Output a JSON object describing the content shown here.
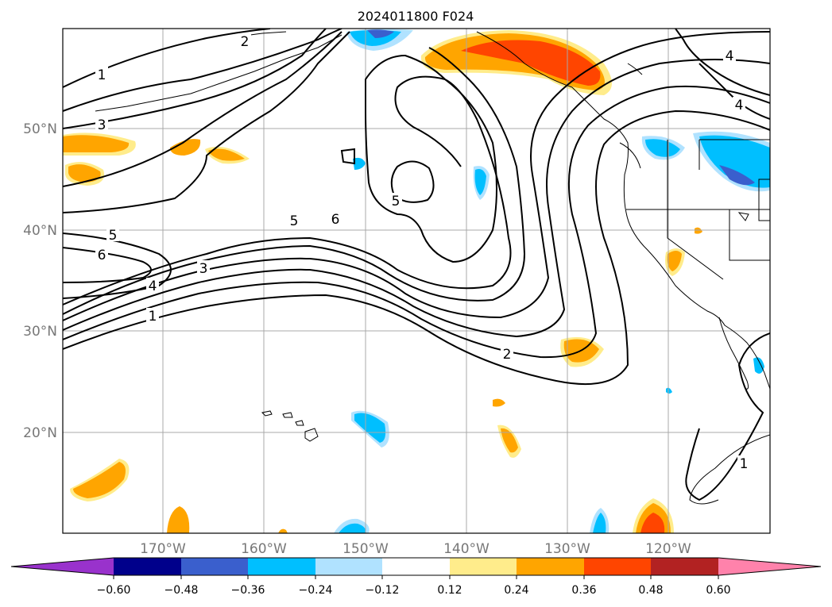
{
  "title": "2024011800 F024",
  "lat_labels": [
    "50°N",
    "40°N",
    "30°N",
    "20°N"
  ],
  "lon_labels": [
    "170°W",
    "160°W",
    "150°W",
    "140°W",
    "130°W",
    "120°W"
  ],
  "colorbar": {
    "ticks": [
      "−0.60",
      "−0.48",
      "−0.36",
      "−0.24",
      "−0.12",
      "0.12",
      "0.24",
      "0.36",
      "0.48",
      "0.60"
    ],
    "colors": [
      "#9932cc",
      "#00008b",
      "#3a5fcd",
      "#00bfff",
      "#b0e2ff",
      "#ffffff",
      "#ffec8b",
      "#ffa500",
      "#ff4500",
      "#b22222",
      "#ff82ab"
    ]
  },
  "contour_labels": {
    "c1a": "1",
    "c3a": "3",
    "c2a": "2",
    "c4a": "4",
    "c4b": "4",
    "c5a": "5",
    "c6a": "6",
    "c5b": "5",
    "c6b": "6",
    "c4c": "4",
    "c3b": "3",
    "c1b": "1",
    "c5c": "5",
    "c2b": "2",
    "c1c": "1"
  }
}
